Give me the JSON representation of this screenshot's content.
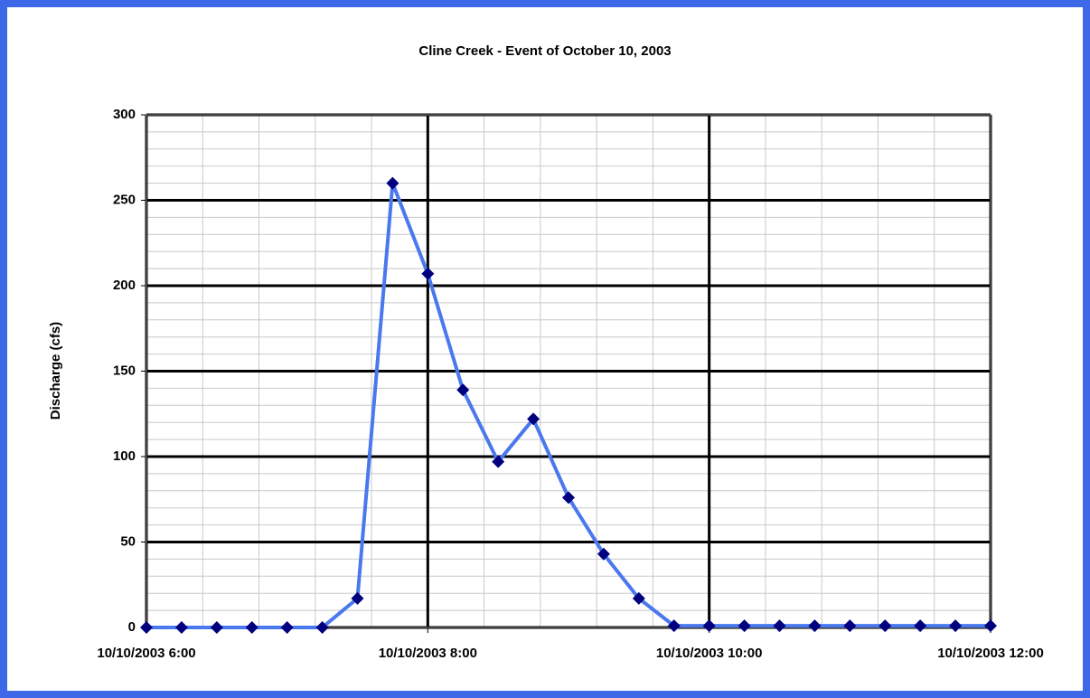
{
  "chart_data": {
    "type": "line",
    "title": "Cline Creek - Event of October 10, 2003",
    "y_label": "Discharge (cfs)",
    "x": [
      "2003-10-10T06:00",
      "2003-10-10T06:15",
      "2003-10-10T06:30",
      "2003-10-10T06:45",
      "2003-10-10T07:00",
      "2003-10-10T07:15",
      "2003-10-10T07:30",
      "2003-10-10T07:45",
      "2003-10-10T08:00",
      "2003-10-10T08:15",
      "2003-10-10T08:30",
      "2003-10-10T08:45",
      "2003-10-10T09:00",
      "2003-10-10T09:15",
      "2003-10-10T09:30",
      "2003-10-10T09:45",
      "2003-10-10T10:00",
      "2003-10-10T10:15",
      "2003-10-10T10:30",
      "2003-10-10T10:45",
      "2003-10-10T11:00",
      "2003-10-10T11:15",
      "2003-10-10T11:30",
      "2003-10-10T11:45",
      "2003-10-10T12:00"
    ],
    "series": [
      {
        "name": "Discharge",
        "color": "#4a78ee",
        "marker_color": "#00007f",
        "values": [
          0,
          0,
          0,
          0,
          0,
          0,
          17,
          260,
          207,
          139,
          97,
          122,
          76,
          43,
          17,
          1,
          1,
          1,
          1,
          1,
          1,
          1,
          1,
          1,
          1
        ]
      }
    ],
    "xlim": [
      "2003-10-10T06:00",
      "2003-10-10T12:00"
    ],
    "xticks": [
      {
        "value": "2003-10-10T06:00",
        "label": "10/10/2003 6:00"
      },
      {
        "value": "2003-10-10T08:00",
        "label": "10/10/2003 8:00"
      },
      {
        "value": "2003-10-10T10:00",
        "label": "10/10/2003 10:00"
      },
      {
        "value": "2003-10-10T12:00",
        "label": "10/10/2003 12:00"
      }
    ],
    "xminorticks": [
      "2003-10-10T06:24",
      "2003-10-10T06:48",
      "2003-10-10T07:12",
      "2003-10-10T07:36",
      "2003-10-10T08:24",
      "2003-10-10T08:48",
      "2003-10-10T09:12",
      "2003-10-10T09:36",
      "2003-10-10T10:24",
      "2003-10-10T10:48",
      "2003-10-10T11:12",
      "2003-10-10T11:36"
    ],
    "ylim": [
      0,
      300
    ],
    "yticks": [
      0,
      50,
      100,
      150,
      200,
      250,
      300
    ],
    "yminorticks": [
      10,
      20,
      30,
      40,
      60,
      70,
      80,
      90,
      110,
      120,
      130,
      140,
      160,
      170,
      180,
      190,
      210,
      220,
      230,
      240,
      260,
      270,
      280,
      290
    ],
    "grid": true
  }
}
